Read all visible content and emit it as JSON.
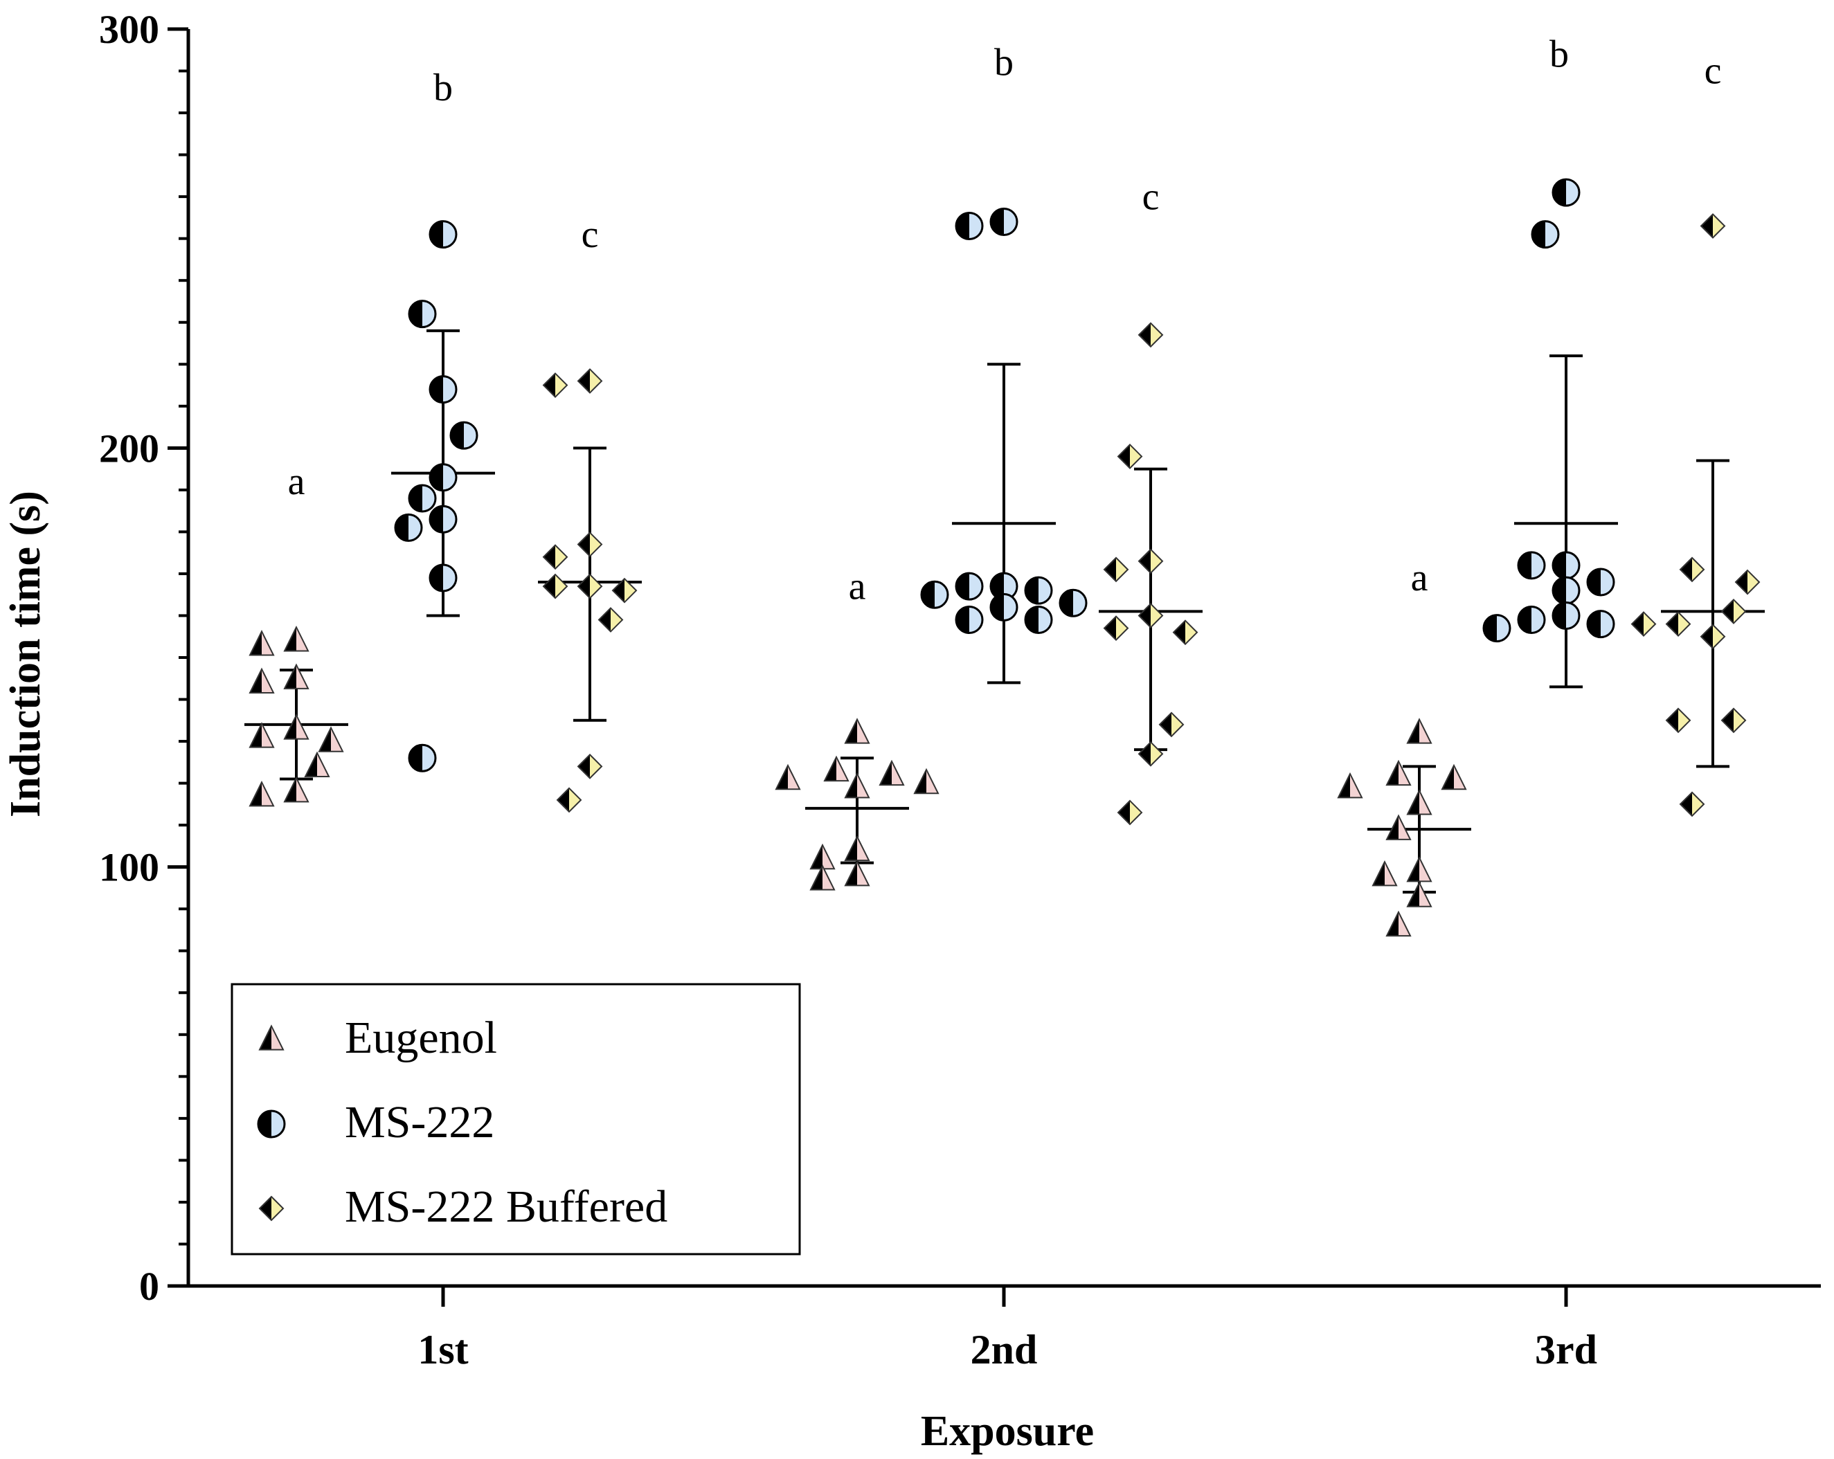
{
  "chart_data": {
    "type": "scatter",
    "title": "",
    "xlabel": "Exposure",
    "ylabel": "Induction time (s)",
    "ylim": [
      0,
      300
    ],
    "y_major_ticks": [
      0,
      100,
      200,
      300
    ],
    "y_minor_step": 10,
    "categories": [
      "1st",
      "2nd",
      "3rd"
    ],
    "legend_position": "bottom-left",
    "series": [
      {
        "name": "Eugenol",
        "marker": "half-triangle",
        "fill": "#f3d3d3",
        "dark": "#000000",
        "points": [
          [
            153,
            154,
            144,
            145,
            133,
            130,
            131,
            124,
            117,
            118
          ],
          [
            132,
            122,
            123,
            120,
            121,
            119,
            104,
            102,
            97,
            98
          ],
          [
            132,
            121,
            122,
            119,
            115,
            109,
            99,
            98,
            93,
            86
          ]
        ],
        "mean": [
          134,
          114,
          109
        ],
        "sd_low": [
          121,
          101,
          94
        ],
        "sd_high": [
          147,
          126,
          124
        ],
        "sig": [
          "a",
          "a",
          "a"
        ],
        "sig_y": [
          189,
          164,
          166
        ]
      },
      {
        "name": "MS-222",
        "marker": "half-circle",
        "fill": "#cfe3f6",
        "dark": "#000000",
        "points": [
          [
            251,
            232,
            214,
            203,
            193,
            188,
            183,
            181,
            169,
            126
          ],
          [
            254,
            253,
            167,
            167,
            166,
            165,
            163,
            162,
            159,
            159
          ],
          [
            261,
            251,
            172,
            172,
            168,
            166,
            160,
            159,
            158,
            157
          ]
        ],
        "mean": [
          194,
          182,
          182
        ],
        "sd_low": [
          160,
          144,
          143
        ],
        "sd_high": [
          228,
          220,
          222
        ],
        "sig": [
          "b",
          "b",
          "b"
        ],
        "sig_y": [
          283,
          289,
          291
        ],
        "sig_x_offset": [
          0,
          0,
          -10
        ]
      },
      {
        "name": "MS-222 Buffered",
        "marker": "half-diamond",
        "fill": "#f6f0a9",
        "dark": "#000000",
        "points": [
          [
            216,
            215,
            177,
            174,
            167,
            167,
            166,
            159,
            124,
            116
          ],
          [
            227,
            198,
            173,
            171,
            160,
            157,
            156,
            134,
            127,
            113
          ],
          [
            253,
            171,
            168,
            161,
            158,
            158,
            155,
            135,
            135,
            115
          ]
        ],
        "mean": [
          168,
          161,
          161
        ],
        "sd_low": [
          135,
          128,
          124
        ],
        "sd_high": [
          200,
          195,
          197
        ],
        "sig": [
          "c",
          "c",
          "c"
        ],
        "sig_y": [
          248,
          257,
          287
        ]
      }
    ]
  }
}
